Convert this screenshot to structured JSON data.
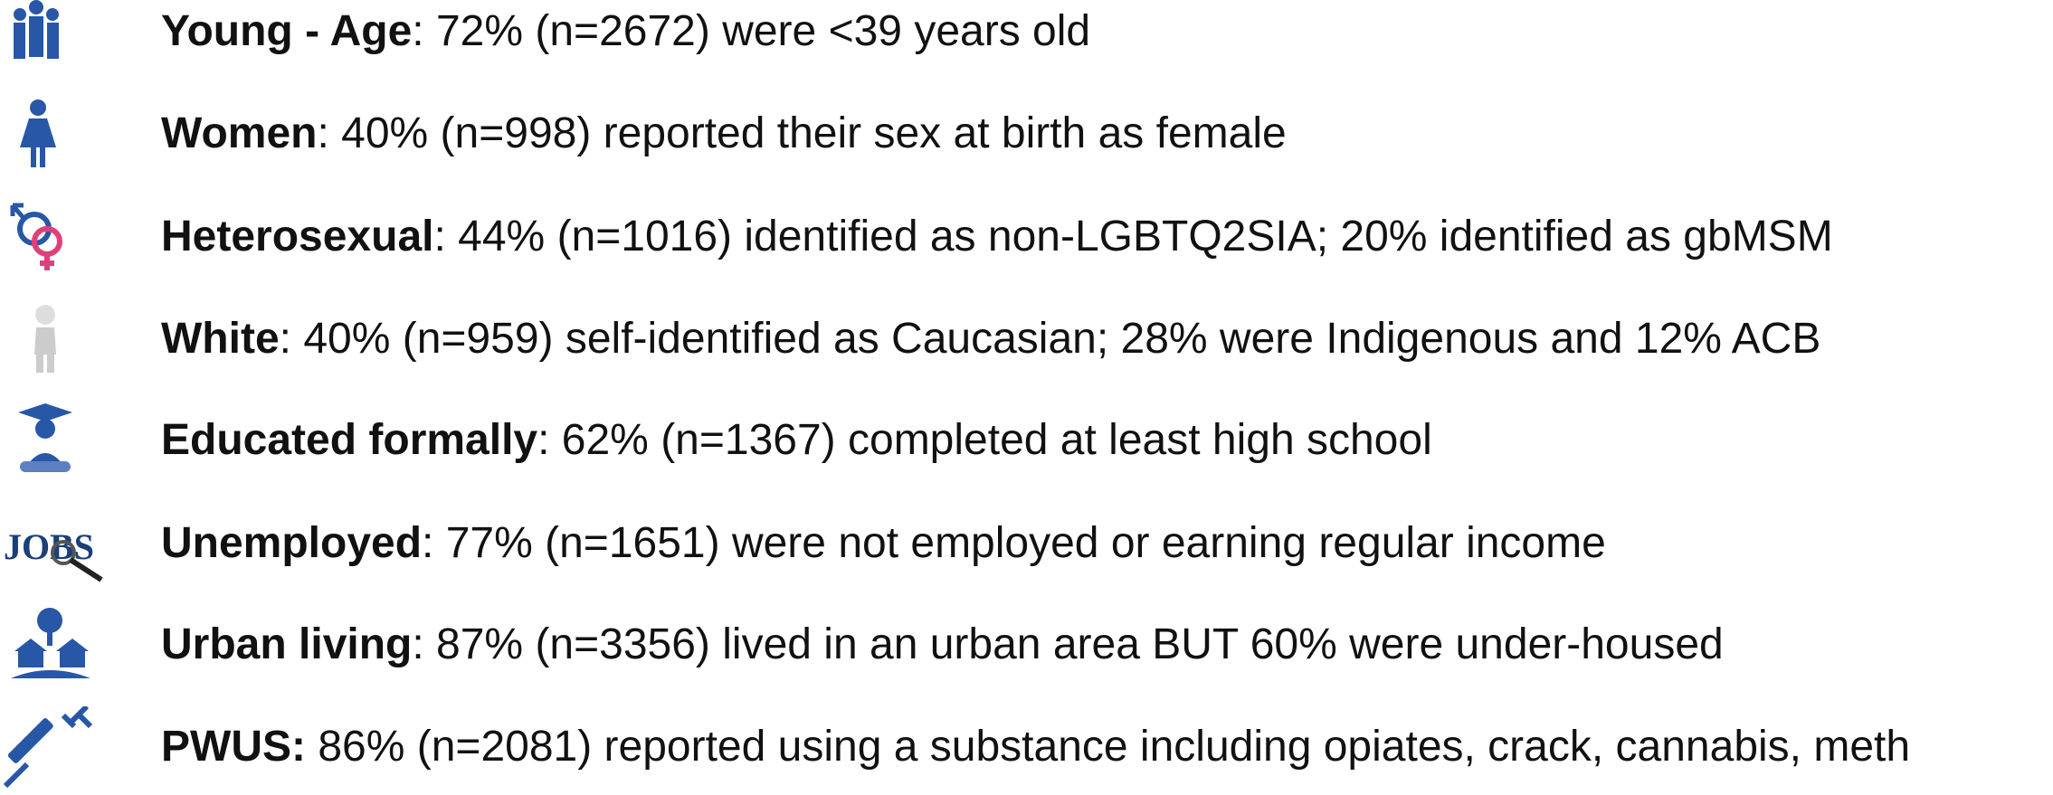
{
  "items": [
    {
      "label": "Young - Age",
      "text": ": 72% (n=2672) were <39 years old"
    },
    {
      "label": "Women",
      "text": ": 40% (n=998) reported their sex at birth as female"
    },
    {
      "label": "Heterosexual",
      "text": ": 44% (n=1016) identified as non-LGBTQ2SIA; 20% identified as gbMSM"
    },
    {
      "label": "White",
      "text": ": 40% (n=959) self-identified as Caucasian; 28% were Indigenous and 12% ACB"
    },
    {
      "label": "Educated formally",
      "text": ": 62% (n=1367) completed at least high school"
    },
    {
      "label": "Unemployed",
      "text": ": 77% (n=1651) were not employed or earning regular income"
    },
    {
      "label": "Urban living",
      "text": ": 87% (n=3356) lived in an urban area BUT 60% were under-housed"
    },
    {
      "label": "PWUS:",
      "text": " 86% (n=2081) reported using a substance including opiates, crack, cannabis, meth"
    }
  ]
}
